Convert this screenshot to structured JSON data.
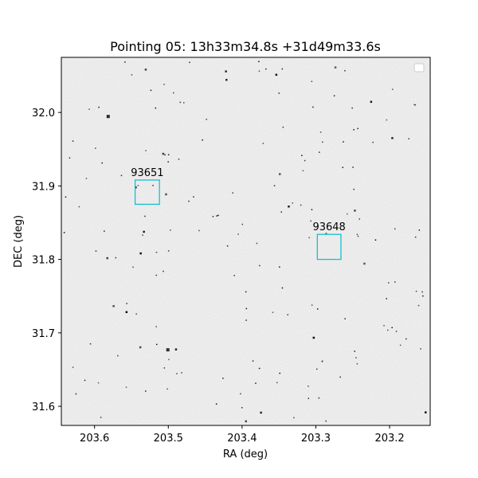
{
  "chart_data": {
    "type": "scatter",
    "title": "Pointing 05: 13h33m34.8s +31d49m33.6s",
    "xlabel": "RA (deg)",
    "ylabel": "DEC (deg)",
    "xlim": [
      203.645,
      203.145
    ],
    "ylim": [
      31.574,
      32.075
    ],
    "x_ticks": [
      {
        "value": 203.6,
        "label": "203.6"
      },
      {
        "value": 203.5,
        "label": "203.5"
      },
      {
        "value": 203.4,
        "label": "203.4"
      },
      {
        "value": 203.3,
        "label": "203.3"
      },
      {
        "value": 203.2,
        "label": "203.2"
      }
    ],
    "y_ticks": [
      {
        "value": 31.6,
        "label": "31.6"
      },
      {
        "value": 31.7,
        "label": "31.7"
      },
      {
        "value": 31.8,
        "label": "31.8"
      },
      {
        "value": 31.9,
        "label": "31.9"
      },
      {
        "value": 32.0,
        "label": "32.0"
      }
    ],
    "grid": false,
    "legend": "top-right (empty)",
    "background": "grayscale sky image with scattered point sources",
    "box_color": "#17becf",
    "targets": [
      {
        "label": "93651",
        "ra": 203.528,
        "dec": 31.892,
        "box_ra": [
          203.545,
          203.512
        ],
        "box_dec": [
          31.875,
          31.908
        ]
      },
      {
        "label": "93648",
        "ra": 203.282,
        "dec": 31.817,
        "box_ra": [
          203.298,
          203.266
        ],
        "box_dec": [
          31.8,
          31.834
        ]
      }
    ]
  }
}
